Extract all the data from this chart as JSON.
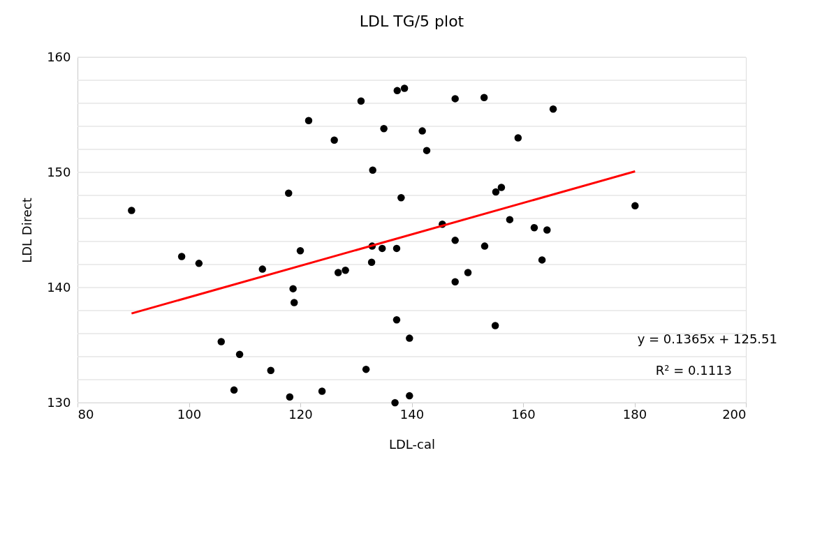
{
  "chart_data": {
    "type": "scatter",
    "title": "LDL TG/5 plot",
    "xlabel": "LDL-cal",
    "ylabel": "LDL Direct",
    "xlim": [
      80,
      200
    ],
    "xticks": [
      80,
      100,
      120,
      140,
      160,
      180,
      200
    ],
    "ylim": [
      130,
      160
    ],
    "yticks": [
      130,
      {
        "value": 132,
        "label": null
      },
      {
        "value": 134,
        "label": null
      },
      {
        "value": 136,
        "label": null
      },
      {
        "value": 138,
        "label": null
      },
      140,
      {
        "value": 142,
        "label": null
      },
      {
        "value": 144,
        "label": null
      },
      {
        "value": 146,
        "label": null
      },
      {
        "value": 148,
        "label": null
      },
      150,
      {
        "value": 152,
        "label": null
      },
      {
        "value": 154,
        "label": null
      },
      {
        "value": 156,
        "label": null
      },
      {
        "value": 158,
        "label": null
      },
      160
    ],
    "grid": "y",
    "marker": "circle",
    "series": [
      {
        "type": "scatter",
        "color": "#000000",
        "x": [
          89.7,
          98.7,
          101.8,
          113.2,
          117.9,
          121.5,
          120.0,
          118.7,
          118.9,
          105.8,
          109.1,
          114.7,
          108.1,
          118.1,
          123.9,
          126.1,
          126.8,
          128.1,
          130.9,
          137.4,
          138.7,
          135.0,
          133.0,
          138.1,
          141.9,
          142.7,
          147.8,
          153.0,
          165.4,
          159.1,
          155.1,
          156.1,
          180.1,
          145.5,
          157.6,
          162.0,
          164.3,
          132.9,
          134.7,
          137.3,
          132.8,
          137.3,
          139.6,
          131.8,
          137.0,
          139.6,
          147.8,
          153.1,
          163.4,
          150.1,
          147.8,
          155.0
        ],
        "values": [
          146.7,
          142.7,
          142.1,
          141.6,
          148.2,
          154.5,
          143.2,
          139.9,
          138.7,
          135.3,
          134.2,
          132.8,
          131.1,
          130.5,
          131.0,
          152.8,
          141.3,
          141.5,
          156.2,
          157.1,
          157.3,
          153.8,
          150.2,
          147.8,
          153.6,
          151.9,
          156.4,
          156.5,
          155.5,
          153.0,
          148.3,
          148.7,
          147.1,
          145.5,
          145.9,
          145.2,
          145.0,
          143.6,
          143.4,
          143.4,
          142.2,
          137.2,
          135.6,
          132.9,
          130.0,
          130.6,
          144.1,
          143.6,
          142.4,
          141.3,
          140.5,
          136.7
        ]
      },
      {
        "type": "line",
        "color": "#ff0000",
        "line_style": "solid",
        "marker": "none",
        "x": [
          89.7,
          180.1
        ],
        "values": [
          137.75,
          150.09
        ]
      }
    ],
    "annotations": [
      "y = 0.1365x + 125.51",
      "R² = 0.1113"
    ]
  }
}
